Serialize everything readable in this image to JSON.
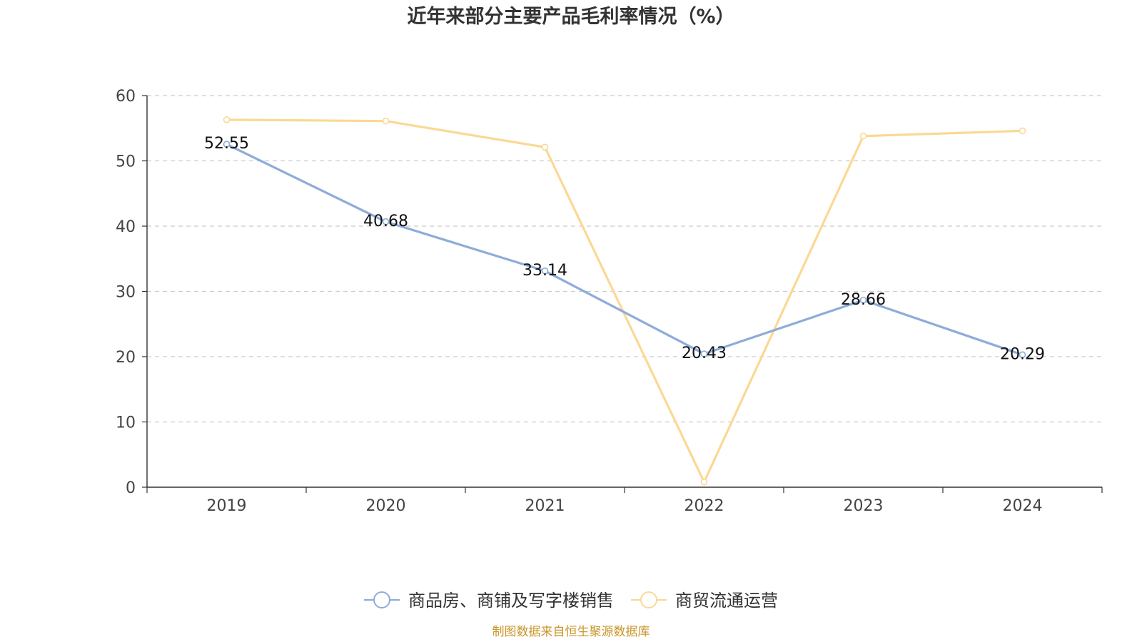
{
  "chart_data": {
    "type": "line",
    "title": "近年来部分主要产品毛利率情况（%）",
    "categories": [
      "2019",
      "2020",
      "2021",
      "2022",
      "2023",
      "2024"
    ],
    "ylim": [
      0,
      60
    ],
    "yticks": [
      0,
      10,
      20,
      30,
      40,
      50,
      60
    ],
    "grid": true,
    "legend_position": "bottom",
    "series": [
      {
        "name": "商品房、商铺及写字楼销售",
        "color": "#8eacd9",
        "values": [
          52.55,
          40.68,
          33.14,
          20.43,
          28.66,
          20.29
        ],
        "labels": [
          "52.55",
          "40.68",
          "33.14",
          "20.43",
          "28.66",
          "20.29"
        ],
        "show_labels": true
      },
      {
        "name": "商贸流通运营",
        "color": "#fbd894",
        "values": [
          56.3,
          56.1,
          52.1,
          0.8,
          53.8,
          54.6
        ],
        "show_labels": false
      }
    ],
    "source": "制图数据来自恒生聚源数据库"
  }
}
